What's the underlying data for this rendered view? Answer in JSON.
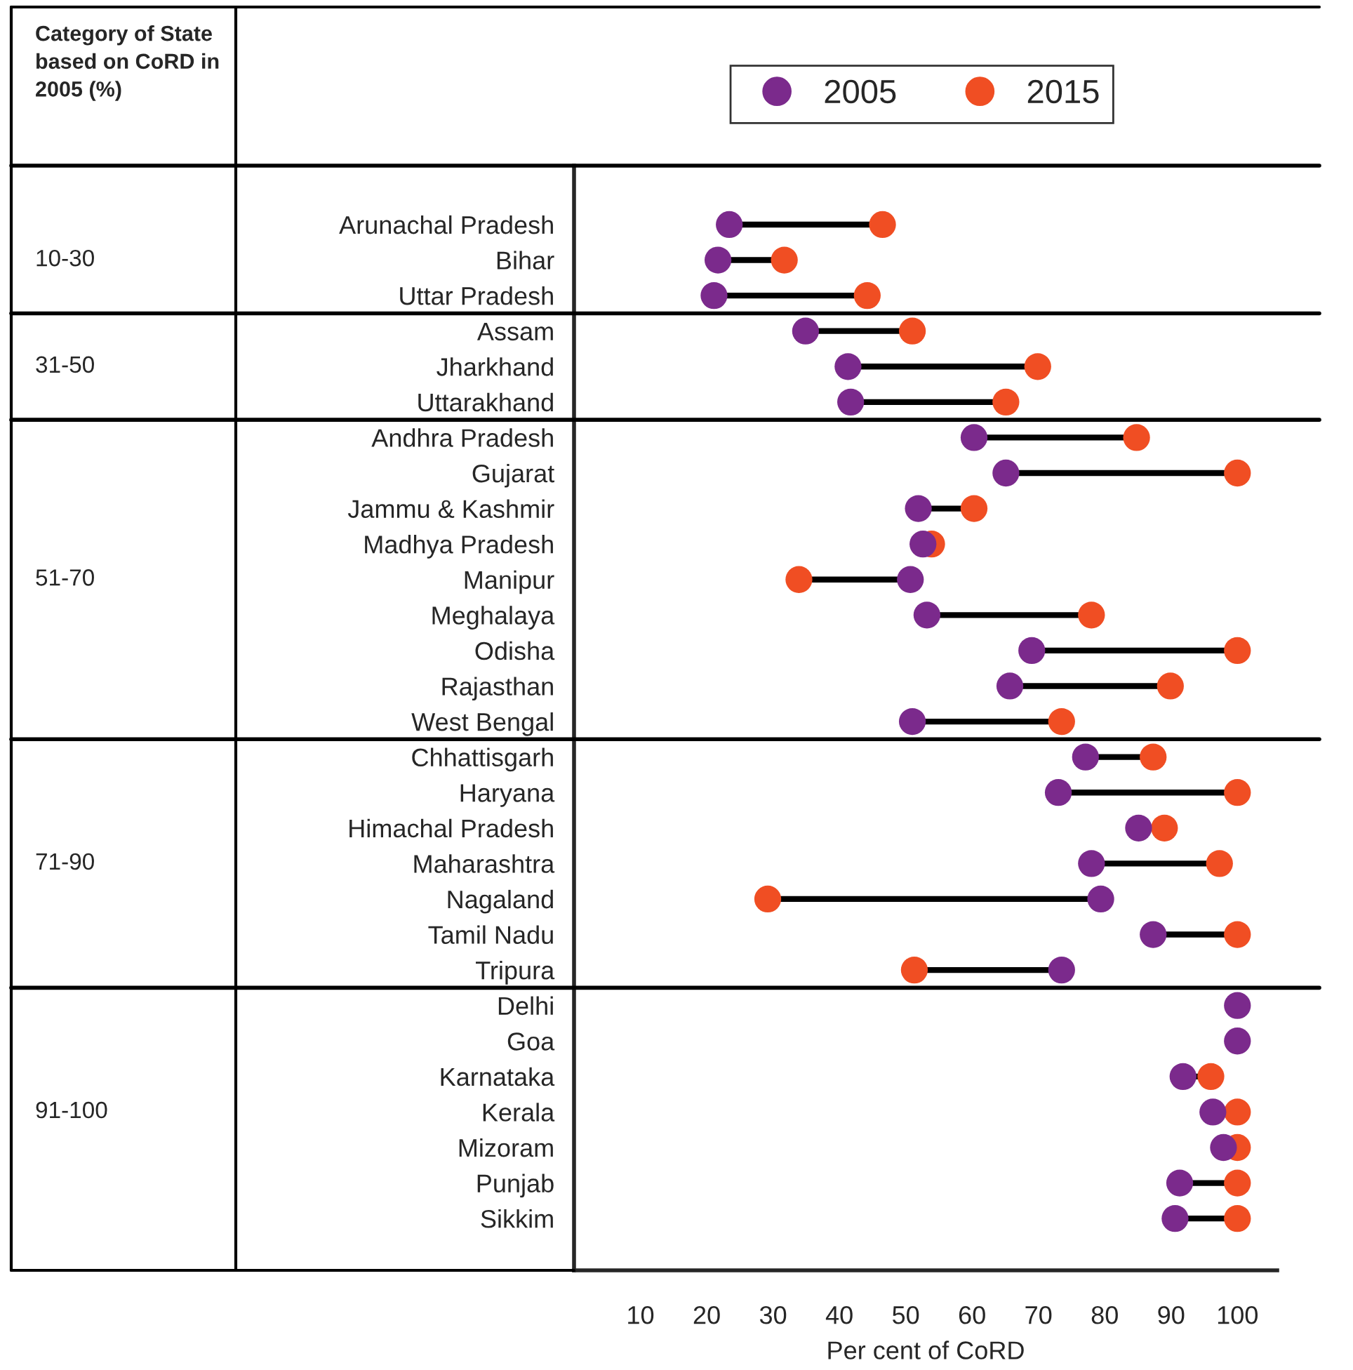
{
  "chart_data": {
    "type": "scatter",
    "orientation": "horizontal",
    "xlabel": "Per cent of CoRD",
    "categories": [
      "Arunachal Pradesh",
      "Bihar",
      "Uttar Pradesh",
      "Assam",
      "Jharkhand",
      "Uttarakhand",
      "Andhra Pradesh",
      "Gujarat",
      "Jammu & Kashmir",
      "Madhya Pradesh",
      "Manipur",
      "Meghalaya",
      "Odisha",
      "Rajasthan",
      "West Bengal",
      "Chhattisgarh",
      "Haryana",
      "Himachal Pradesh",
      "Maharashtra",
      "Nagaland",
      "Tamil Nadu",
      "Tripura",
      "Delhi",
      "Goa",
      "Karnataka",
      "Kerala",
      "Mizoram",
      "Punjab",
      "Sikkim"
    ],
    "series": [
      {
        "name": "2005",
        "color": "#7b2a8c",
        "values": [
          23.4,
          21.7,
          21.1,
          34.9,
          41.3,
          41.7,
          60.3,
          65.1,
          51.9,
          52.6,
          50.7,
          53.2,
          69.0,
          65.7,
          51.0,
          77.1,
          73.0,
          85.1,
          78.0,
          79.4,
          87.3,
          73.5,
          100,
          100,
          91.8,
          96.3,
          97.9,
          91.3,
          90.6
        ]
      },
      {
        "name": "2015",
        "color": "#f04e23",
        "values": [
          46.5,
          31.7,
          44.2,
          51.0,
          69.9,
          65.1,
          84.8,
          100,
          60.3,
          53.9,
          33.9,
          78.0,
          100,
          89.9,
          73.5,
          87.3,
          100,
          89.0,
          97.3,
          29.2,
          100,
          51.3,
          null,
          null,
          96.0,
          100,
          100,
          100,
          100
        ]
      }
    ],
    "xlim": [
      0,
      106
    ],
    "xticks": [
      10,
      20,
      30,
      40,
      50,
      60,
      70,
      80,
      90,
      100
    ],
    "marker": "circle",
    "legend": "top right",
    "grid": false,
    "annotations": [
      "Category of State based on CoRD in 2005 (%)",
      "10-30",
      "31-50",
      "51-70",
      "71-90",
      "91-100"
    ]
  }
}
